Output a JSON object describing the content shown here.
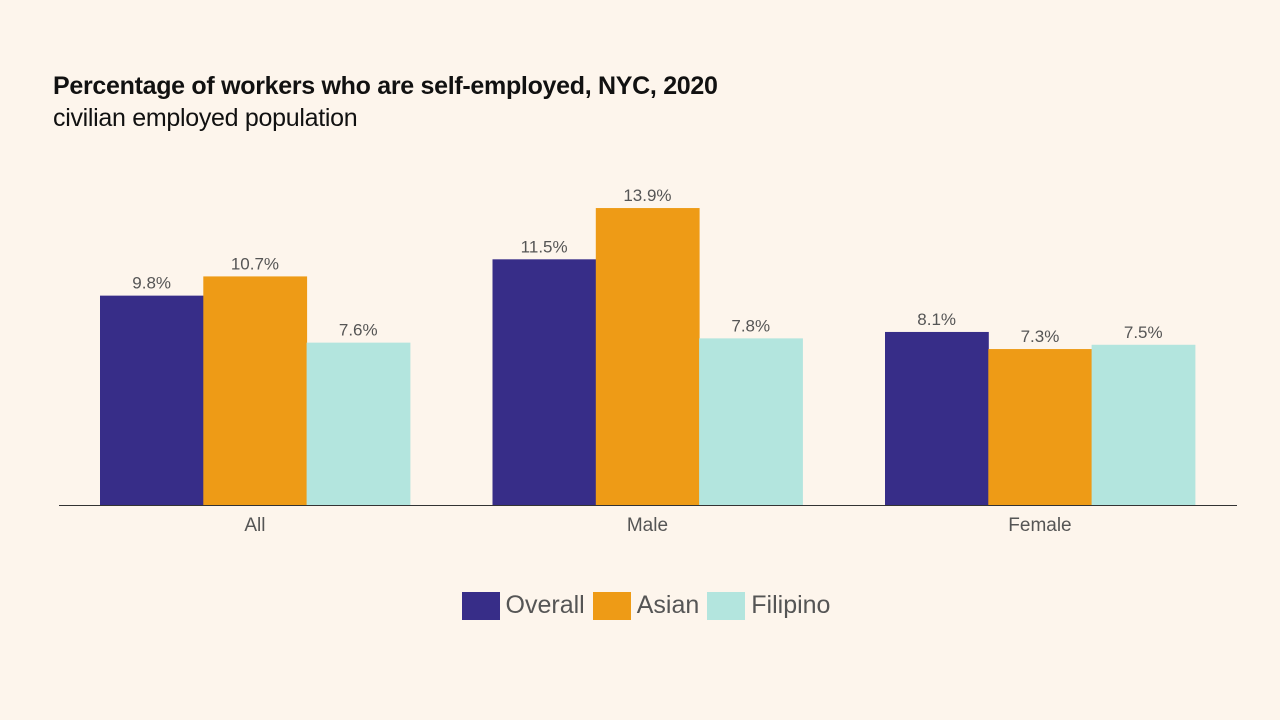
{
  "chart_data": {
    "type": "bar",
    "title": "Percentage of workers who are self-employed, NYC, 2020",
    "subtitle": "civilian employed population",
    "categories": [
      "All",
      "Male",
      "Female"
    ],
    "series": [
      {
        "name": "Overall",
        "color": "#372d88",
        "values": [
          9.8,
          11.5,
          8.1
        ],
        "labels": [
          "9.8%",
          "11.5%",
          "8.1%"
        ]
      },
      {
        "name": "Asian",
        "color": "#ee9b16",
        "values": [
          10.7,
          13.9,
          7.3
        ],
        "labels": [
          "10.7%",
          "13.9%",
          "7.3%"
        ]
      },
      {
        "name": "Filipino",
        "color": "#b3e5de",
        "values": [
          7.6,
          7.8,
          7.5
        ],
        "labels": [
          "7.6%",
          "7.8%",
          "7.5%"
        ]
      }
    ],
    "xlabel": "",
    "ylabel": "",
    "ylim": [
      0,
      15.4
    ],
    "grid": false,
    "legend_position": "bottom-center"
  }
}
